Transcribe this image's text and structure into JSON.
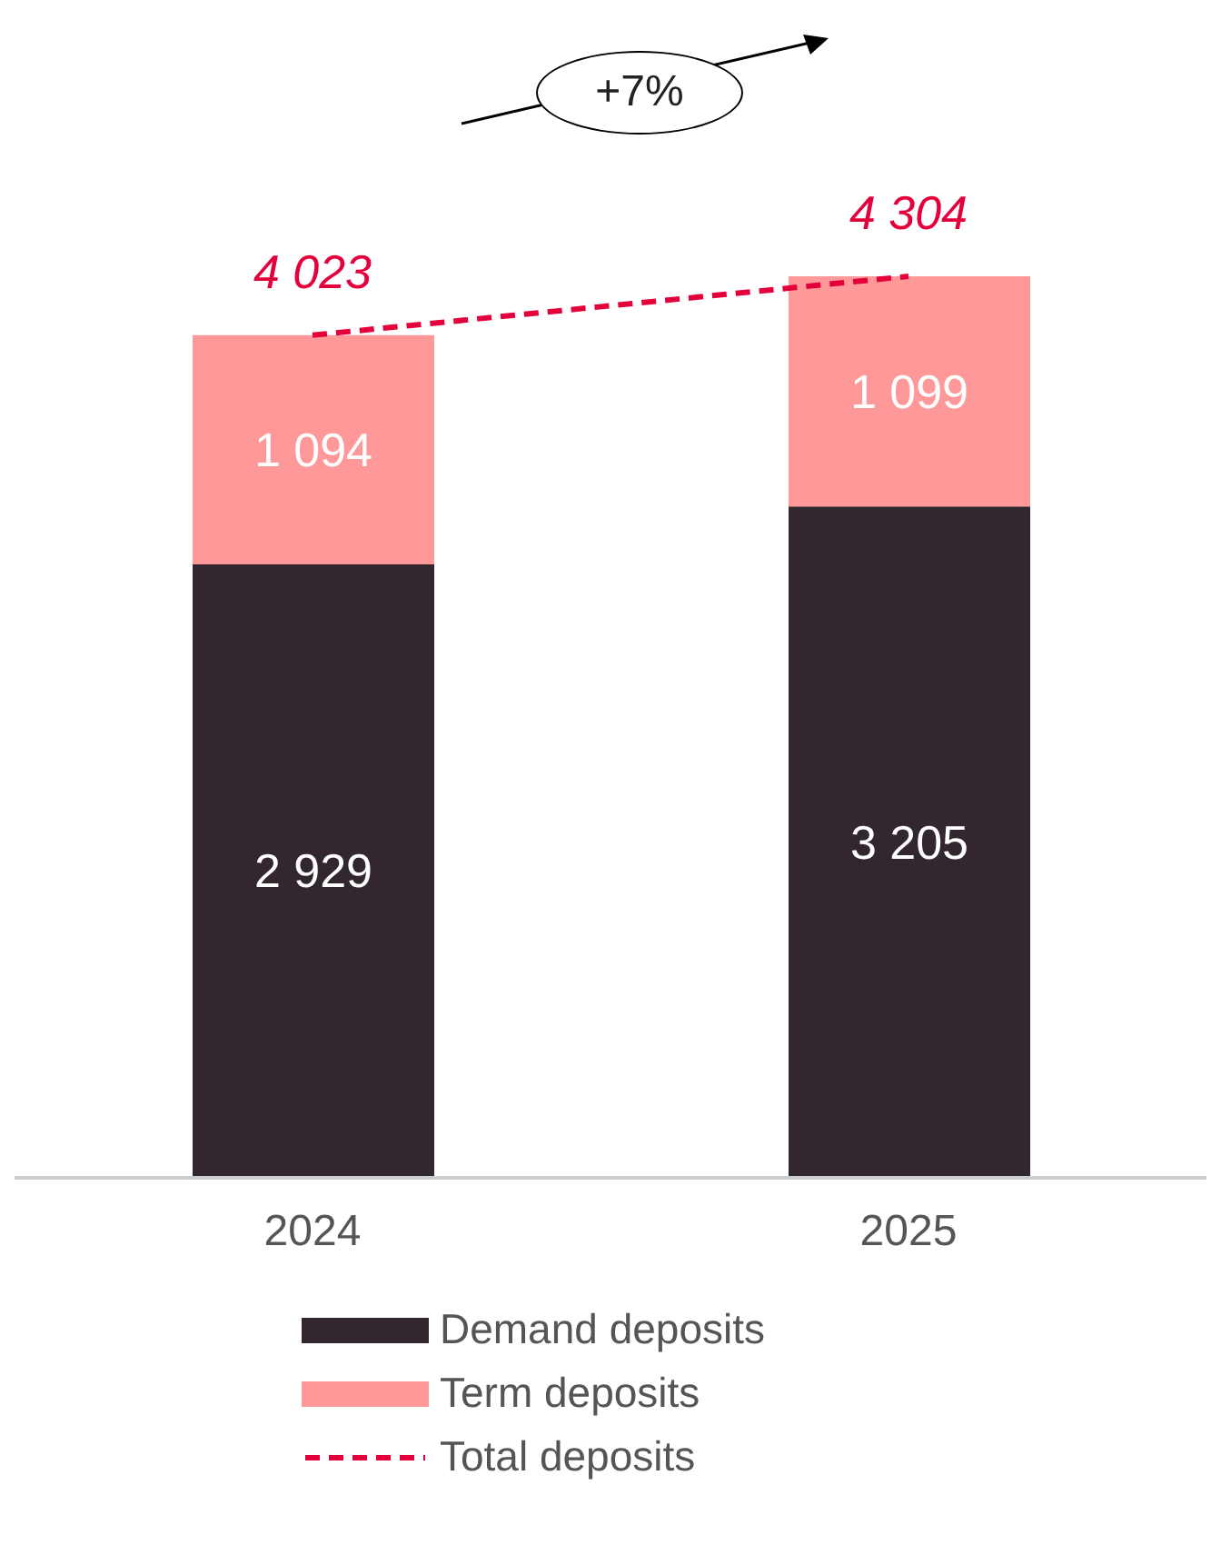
{
  "chart_data": {
    "type": "bar",
    "stacked": true,
    "categories": [
      "2024",
      "2025"
    ],
    "series": [
      {
        "name": "Demand deposits",
        "color": "#32262f",
        "values": [
          2929,
          3205
        ],
        "value_labels": [
          "2 929",
          "3 205"
        ]
      },
      {
        "name": "Term deposits",
        "color": "#ff9999",
        "values": [
          1094,
          1099
        ],
        "value_labels": [
          "1 094",
          "1 099"
        ]
      },
      {
        "name": "Total deposits",
        "type": "line",
        "color": "#e4003a",
        "line_style": "dashed",
        "marker": "none",
        "values": [
          4023,
          4304
        ],
        "value_labels": [
          "4 023",
          "4 304"
        ]
      }
    ],
    "annotations": [
      "+7%"
    ],
    "legend": "bottom",
    "tick_labels": "x"
  }
}
